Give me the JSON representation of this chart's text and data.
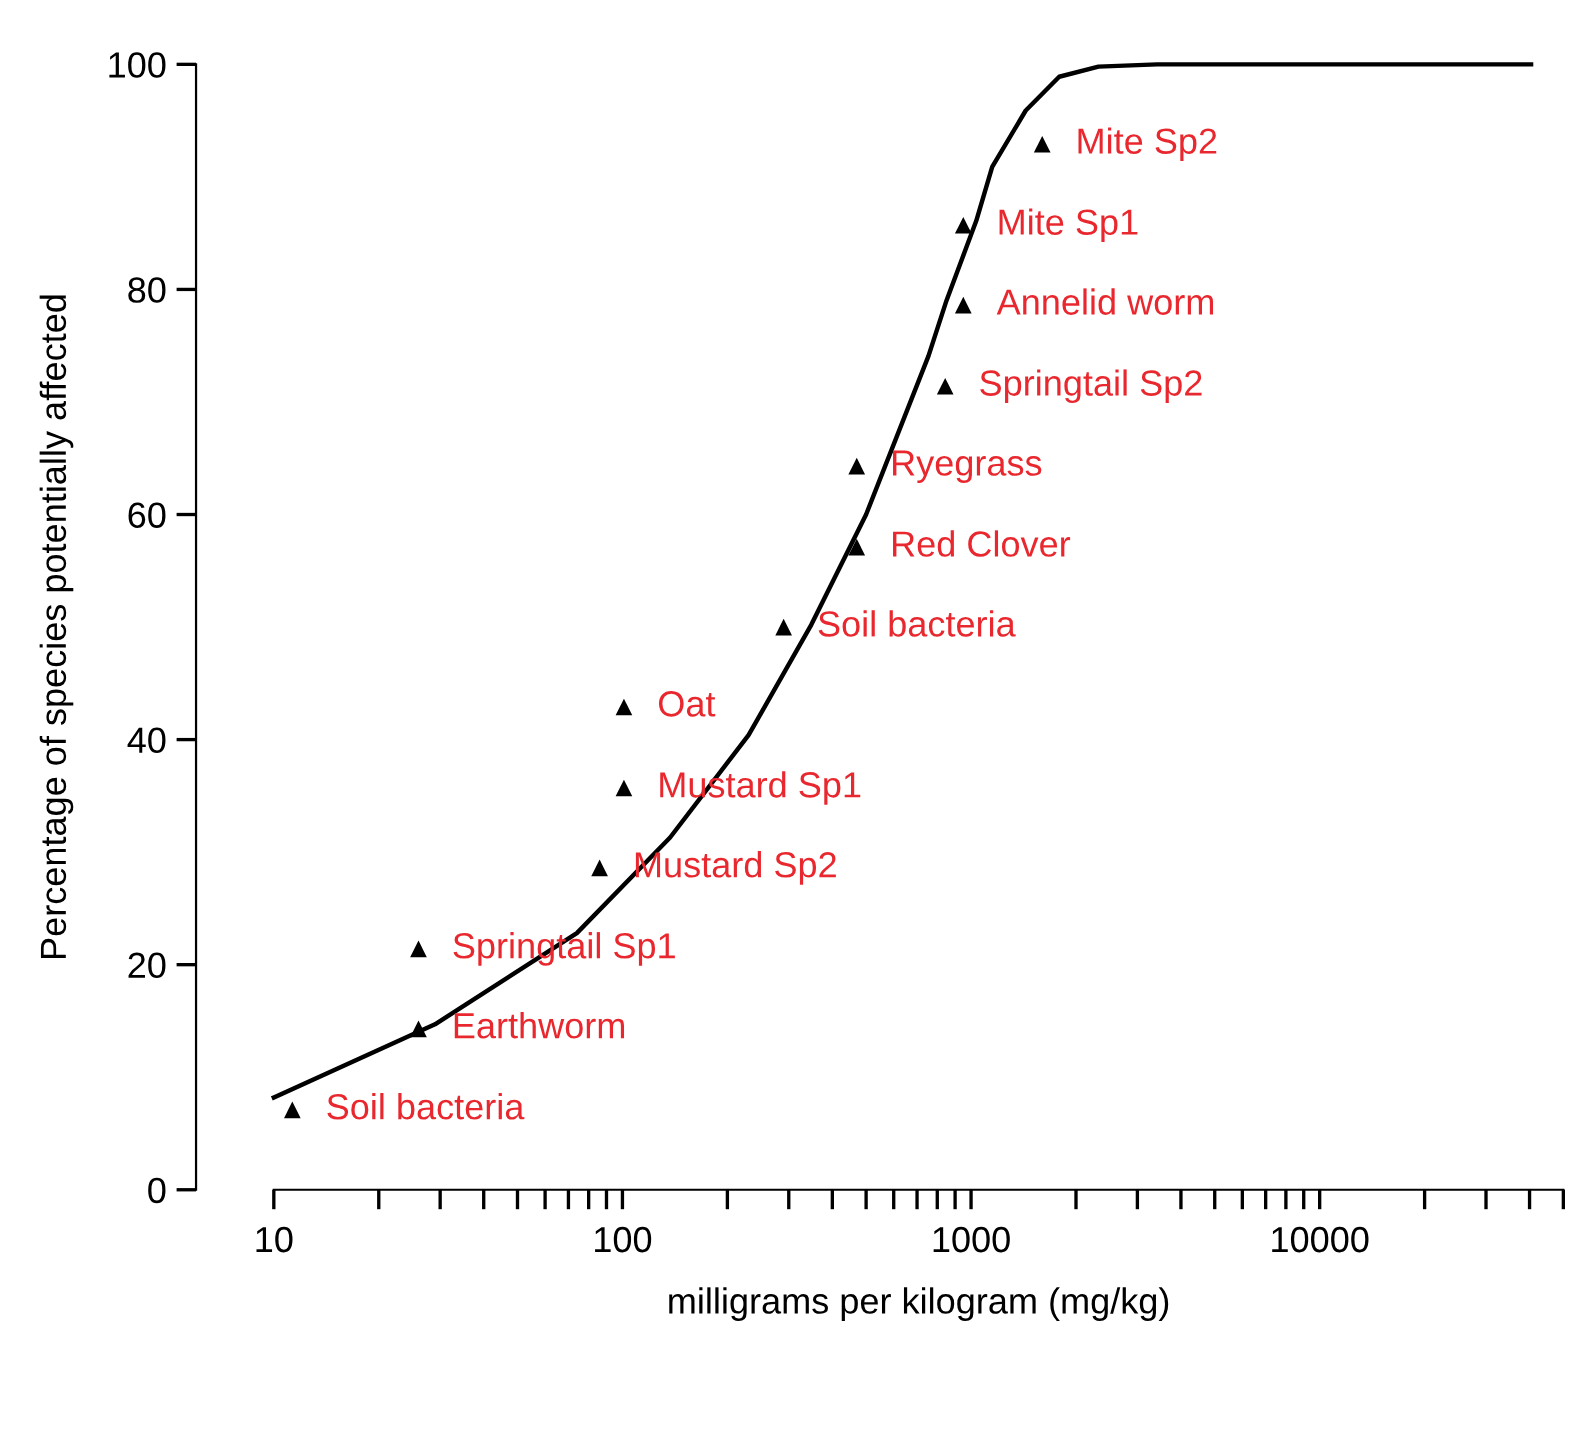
{
  "chart_data": {
    "type": "scatter",
    "xlabel": "milligrams per kilogram (mg/kg)",
    "ylabel": "Percentage of species potentially affected",
    "log": "x",
    "grid": false,
    "legend": false,
    "xlim": [
      10,
      50000
    ],
    "ylim": [
      0,
      100
    ],
    "xticks": [
      10,
      {
        "value": 20,
        "label": null
      },
      {
        "value": 30,
        "label": null
      },
      {
        "value": 40,
        "label": null
      },
      {
        "value": 50,
        "label": null
      },
      {
        "value": 60,
        "label": null
      },
      {
        "value": 70,
        "label": null
      },
      {
        "value": 80,
        "label": null
      },
      {
        "value": 90,
        "label": null
      },
      100,
      {
        "value": 200,
        "label": null
      },
      {
        "value": 300,
        "label": null
      },
      {
        "value": 400,
        "label": null
      },
      {
        "value": 500,
        "label": null
      },
      {
        "value": 600,
        "label": null
      },
      {
        "value": 700,
        "label": null
      },
      {
        "value": 800,
        "label": null
      },
      {
        "value": 900,
        "label": null
      },
      1000,
      {
        "value": 2000,
        "label": null
      },
      {
        "value": 3000,
        "label": null
      },
      {
        "value": 4000,
        "label": null
      },
      {
        "value": 5000,
        "label": null
      },
      {
        "value": 6000,
        "label": null
      },
      {
        "value": 7000,
        "label": null
      },
      {
        "value": 8000,
        "label": null
      },
      {
        "value": 9000,
        "label": null
      },
      10000,
      {
        "value": 20000,
        "label": null
      },
      {
        "value": 30000,
        "label": null
      },
      {
        "value": 40000,
        "label": null
      },
      {
        "value": 50000,
        "label": null
      }
    ],
    "yticks": [
      0,
      20,
      40,
      60,
      80,
      100
    ],
    "series": [
      {
        "type": "line",
        "color": "#000000",
        "line_style": "solid",
        "marker": "none",
        "x": [
          10,
          29,
          74,
          137,
          230,
          348,
          500,
          755,
          850,
          1035,
          1150,
          1435,
          1790,
          2320,
          3420,
          40400
        ],
        "values": [
          8.2,
          14.7,
          22.8,
          31.3,
          40.4,
          50.2,
          60.0,
          74.1,
          79.0,
          86.1,
          90.9,
          95.9,
          98.9,
          99.8,
          100,
          100
        ]
      },
      {
        "color": "#000000",
        "marker": "triangle",
        "x": [
          11.3,
          26,
          26,
          86,
          101,
          101,
          290,
          470,
          470,
          843,
          950,
          950,
          1600
        ],
        "values": [
          7.1,
          14.3,
          21.4,
          28.6,
          35.7,
          42.9,
          50,
          57.1,
          64.3,
          71.4,
          78.6,
          85.7,
          92.9
        ]
      }
    ],
    "annotations": [
      {
        "text": "Soil bacteria",
        "x": 11.3,
        "y": 7.1
      },
      {
        "text": "Earthworm",
        "x": 26,
        "y": 14.3
      },
      {
        "text": "Springtail Sp1",
        "x": 26,
        "y": 21.4
      },
      {
        "text": "Mustard Sp2",
        "x": 86,
        "y": 28.6
      },
      {
        "text": "Mustard Sp1",
        "x": 101,
        "y": 35.7
      },
      {
        "text": "Oat",
        "x": 101,
        "y": 42.9
      },
      {
        "text": "Soil bacteria",
        "x": 290,
        "y": 50
      },
      {
        "text": "Red Clover",
        "x": 470,
        "y": 57.1
      },
      {
        "text": "Ryegrass",
        "x": 470,
        "y": 64.3
      },
      {
        "text": "Springtail Sp2",
        "x": 843,
        "y": 71.4
      },
      {
        "text": "Annelid worm",
        "x": 950,
        "y": 78.6
      },
      {
        "text": "Mite Sp1",
        "x": 950,
        "y": 85.7
      },
      {
        "text": "Mite Sp2",
        "x": 1600,
        "y": 92.9
      }
    ]
  }
}
